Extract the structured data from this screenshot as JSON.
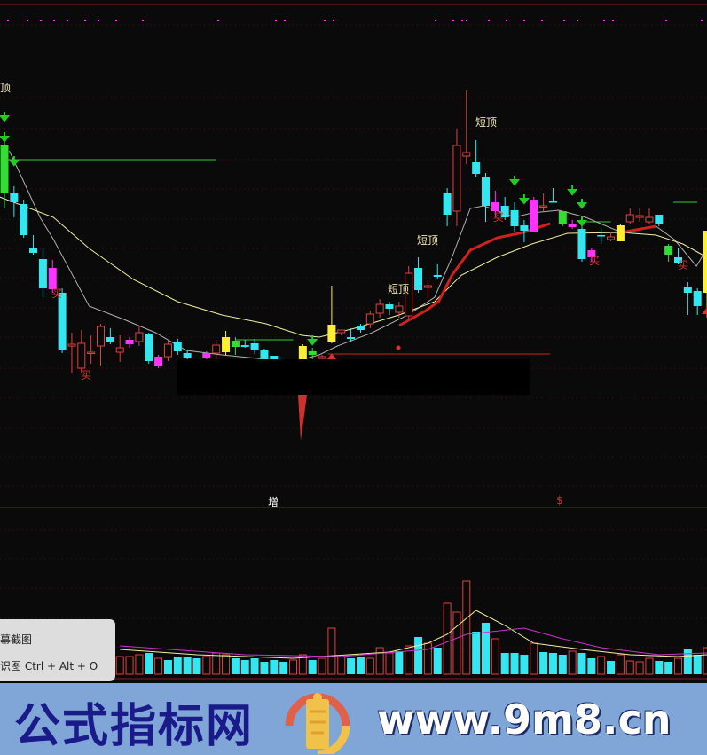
{
  "chart_labels": {
    "top_left_partial": "顶",
    "short_top": [
      "短顶",
      "短顶",
      "短顶"
    ],
    "buy": [
      "买",
      "买",
      "买",
      "买",
      "买"
    ],
    "zeng": "增",
    "dollar": "$"
  },
  "popup": {
    "item1": "幕截图",
    "item2": "识图 Ctrl + Alt + O"
  },
  "banner": {
    "brand": "公式指标网",
    "site": "www.9m8.cn",
    "logo_text": "www.9m8.cn"
  },
  "colors": {
    "background": "#0a0a0a",
    "down_cyan": "#33e6f0",
    "up_red": "#e04040",
    "magenta": "#ff33ff",
    "green": "#33dd33",
    "yellow": "#ffee33",
    "ma_gray": "#b0b0b0",
    "ma_yellow": "#f0f0a0",
    "ma_red": "#d02020",
    "banner": "#7fa6d6",
    "brand_text": "#1a1a8a"
  },
  "chart_data": {
    "type": "candlestick",
    "candle_fields": [
      "index",
      "high",
      "body_top",
      "body_bottom",
      "low",
      "style"
    ],
    "candles": [
      [
        0,
        29.5,
        28.7,
        23.2,
        21.5,
        "green"
      ],
      [
        1,
        24.0,
        23.3,
        22.2,
        20.5,
        "cyan"
      ],
      [
        2,
        22.5,
        22.0,
        18.5,
        18.2,
        "cyan"
      ],
      [
        3,
        18.5,
        17.0,
        16.5,
        16.3,
        "cyan"
      ],
      [
        4,
        17.0,
        15.8,
        12.5,
        11.5,
        "cyan"
      ],
      [
        5,
        15.7,
        14.8,
        12.4,
        12.0,
        "magenta"
      ],
      [
        6,
        12.5,
        12.0,
        5.5,
        5.2,
        "cyan"
      ],
      [
        7,
        7.5,
        6.2,
        6.0,
        3.0,
        "red"
      ],
      [
        8,
        7.8,
        6.3,
        3.5,
        3.0,
        "red"
      ],
      [
        9,
        7.2,
        5.3,
        5.2,
        4.0,
        "red"
      ],
      [
        10,
        8.5,
        8.2,
        6.0,
        3.8,
        "red"
      ],
      [
        11,
        8.0,
        7.0,
        6.5,
        6.2,
        "cyan"
      ],
      [
        12,
        7.2,
        5.8,
        5.3,
        4.2,
        "red"
      ],
      [
        13,
        7.0,
        6.7,
        6.2,
        5.8,
        "magenta"
      ],
      [
        14,
        8.2,
        7.5,
        6.5,
        6.0,
        "red"
      ],
      [
        15,
        7.5,
        7.3,
        4.3,
        4.0,
        "cyan"
      ],
      [
        16,
        5.0,
        4.8,
        3.8,
        3.5,
        "magenta"
      ],
      [
        17,
        6.6,
        6.2,
        4.8,
        4.3,
        "red"
      ],
      [
        18,
        6.8,
        6.5,
        5.4,
        5.0,
        "cyan"
      ],
      [
        19,
        5.5,
        5.2,
        4.6,
        4.4,
        "cyan"
      ],
      [
        21,
        5.4,
        5.2,
        4.6,
        4.4,
        "magenta"
      ],
      [
        22,
        6.7,
        6.1,
        5.2,
        4.5,
        "red"
      ],
      [
        23,
        7.7,
        7.0,
        5.3,
        5.0,
        "yellow"
      ],
      [
        24,
        7.0,
        6.6,
        5.9,
        5.0,
        "green"
      ],
      [
        25,
        6.7,
        6.1,
        5.9,
        5.8,
        "cyan"
      ],
      [
        26,
        6.8,
        6.3,
        5.5,
        5.1,
        "cyan"
      ],
      [
        27,
        5.7,
        5.5,
        4.5,
        4.3,
        "cyan"
      ],
      [
        28,
        4.9,
        4.9,
        4.5,
        4.5,
        "cyan"
      ],
      [
        31,
        6.2,
        6.0,
        4.5,
        4.5,
        "yellow"
      ],
      [
        32,
        5.8,
        5.4,
        5.0,
        4.5,
        "green"
      ],
      [
        33,
        5.0,
        4.8,
        4.6,
        4.4,
        "red"
      ],
      [
        34,
        12.8,
        8.4,
        6.5,
        6.3,
        "yellow"
      ],
      [
        35,
        7.8,
        7.8,
        7.5,
        7.2,
        "red"
      ],
      [
        36,
        8.0,
        7.0,
        6.8,
        6.5,
        "cyan"
      ],
      [
        37,
        8.5,
        8.3,
        7.8,
        7.5,
        "cyan"
      ],
      [
        38,
        10.0,
        9.6,
        8.5,
        8.0,
        "red"
      ],
      [
        39,
        11.3,
        10.7,
        9.7,
        9.2,
        "red"
      ],
      [
        40,
        11.0,
        10.7,
        10.2,
        9.5,
        "cyan"
      ],
      [
        41,
        11.0,
        10.5,
        9.8,
        9.2,
        "red"
      ],
      [
        42,
        15.0,
        14.2,
        9.4,
        9.0,
        "red"
      ],
      [
        43,
        16.0,
        14.8,
        12.3,
        12.0,
        "cyan"
      ],
      [
        44,
        13.4,
        12.8,
        12.6,
        11.4,
        "red"
      ],
      [
        45,
        15.2,
        14.0,
        13.8,
        13.5,
        "cyan"
      ],
      [
        46,
        23.8,
        23.2,
        20.8,
        19.5,
        "cyan"
      ],
      [
        47,
        30.5,
        28.6,
        21.2,
        19.5,
        "red"
      ],
      [
        48,
        34.8,
        27.8,
        27.4,
        26.5,
        "red"
      ],
      [
        49,
        29.2,
        26.7,
        25.4,
        25.0,
        "cyan"
      ],
      [
        50,
        25.5,
        25.0,
        21.8,
        20.0,
        "cyan"
      ],
      [
        51,
        23.5,
        22.2,
        21.2,
        20.5,
        "magenta"
      ],
      [
        52,
        22.8,
        21.8,
        20.5,
        20.2,
        "cyan"
      ],
      [
        53,
        22.2,
        21.3,
        19.5,
        18.8,
        "cyan"
      ],
      [
        54,
        20.2,
        19.6,
        19.0,
        17.7,
        "cyan"
      ],
      [
        55,
        22.8,
        22.5,
        18.8,
        18.8,
        "magenta"
      ],
      [
        56,
        23.2,
        21.8,
        21.8,
        21.2,
        "red"
      ],
      [
        57,
        23.8,
        22.3,
        22.3,
        22.2,
        "cyan"
      ],
      [
        58,
        21.2,
        21.2,
        19.8,
        19.5,
        "green"
      ],
      [
        59,
        20.2,
        19.8,
        19.4,
        19.2,
        "magenta"
      ],
      [
        60,
        20.0,
        19.2,
        15.8,
        15.5,
        "cyan"
      ],
      [
        61,
        17.0,
        16.8,
        16.0,
        15.5,
        "magenta"
      ],
      [
        62,
        19.2,
        18.5,
        18.5,
        17.5,
        "cyan"
      ],
      [
        63,
        18.8,
        18.3,
        18.0,
        17.8,
        "red"
      ],
      [
        64,
        19.8,
        19.6,
        17.8,
        17.8,
        "yellow"
      ],
      [
        65,
        21.5,
        20.8,
        20.0,
        19.8,
        "red"
      ],
      [
        66,
        21.5,
        20.7,
        20.5,
        20.0,
        "red"
      ],
      [
        67,
        21.5,
        20.5,
        20.0,
        19.8,
        "red"
      ],
      [
        68,
        20.8,
        20.8,
        19.8,
        19.5,
        "cyan"
      ],
      [
        69,
        17.5,
        17.3,
        16.3,
        15.5,
        "green"
      ],
      [
        70,
        17.0,
        16.0,
        15.4,
        15.2,
        "cyan"
      ],
      [
        71,
        13.2,
        12.7,
        12.0,
        9.5,
        "cyan"
      ],
      [
        72,
        12.5,
        12.2,
        10.5,
        9.5,
        "cyan"
      ],
      [
        73,
        19.0,
        19.0,
        12.0,
        10.0,
        "yellow"
      ]
    ],
    "ma_lines": [
      {
        "color": "#b0b0b0",
        "points": [
          [
            0.5,
            28
          ],
          [
            1.8,
            25
          ],
          [
            3.7,
            20.5
          ],
          [
            5.1,
            18
          ],
          [
            8.8,
            10.5
          ],
          [
            12.4,
            9
          ],
          [
            15.7,
            7.5
          ],
          [
            18.9,
            5.5
          ],
          [
            22.6,
            5
          ],
          [
            27.2,
            4.5
          ],
          [
            30,
            4.2
          ],
          [
            32.7,
            5
          ],
          [
            34.6,
            6
          ],
          [
            38.2,
            7.5
          ],
          [
            41.9,
            9.5
          ],
          [
            44.7,
            11.5
          ],
          [
            46.5,
            16
          ],
          [
            48.4,
            21.5
          ],
          [
            49.8,
            21.8
          ],
          [
            53,
            20.5
          ],
          [
            54.8,
            21
          ],
          [
            57.6,
            21.3
          ],
          [
            60.4,
            20.5
          ],
          [
            64.1,
            18.8
          ],
          [
            65.9,
            19.2
          ],
          [
            67.7,
            19.5
          ],
          [
            69.6,
            18
          ],
          [
            71.9,
            15
          ],
          [
            73,
            17
          ]
        ]
      },
      {
        "color": "#f0f0a0",
        "points": [
          [
            -0.5,
            22.8
          ],
          [
            5.1,
            20.5
          ],
          [
            8.8,
            17
          ],
          [
            13.4,
            13.5
          ],
          [
            18,
            11
          ],
          [
            22.6,
            9.5
          ],
          [
            27.2,
            8.5
          ],
          [
            30.9,
            7.2
          ],
          [
            32.7,
            7
          ],
          [
            36.4,
            8
          ],
          [
            41,
            9.5
          ],
          [
            44.7,
            11
          ],
          [
            47.5,
            14
          ],
          [
            51.2,
            16
          ],
          [
            54.8,
            17.5
          ],
          [
            58.5,
            18.7
          ],
          [
            64.1,
            18.8
          ],
          [
            67.7,
            18.5
          ],
          [
            70.5,
            17.5
          ],
          [
            73,
            16
          ]
        ]
      },
      {
        "color": "#d02020",
        "thick": true,
        "points": [
          [
            41,
            8.3
          ],
          [
            43.8,
            10
          ],
          [
            45.1,
            11
          ],
          [
            46.5,
            14
          ],
          [
            48.4,
            16.8
          ],
          [
            51.2,
            18.2
          ],
          [
            53.9,
            18.8
          ],
          [
            56.7,
            19.8
          ]
        ]
      },
      {
        "color": "#d02020",
        "thick": true,
        "points": [
          [
            64.1,
            18.8
          ],
          [
            67.7,
            19.5
          ]
        ]
      }
    ],
    "volume": {
      "fields": [
        "index",
        "volume",
        "style"
      ],
      "bars": [
        [
          12,
          20,
          "r"
        ],
        [
          13,
          20,
          "r"
        ],
        [
          14,
          22,
          "r"
        ],
        [
          15,
          24,
          "c"
        ],
        [
          16,
          18,
          "r"
        ],
        [
          17,
          16,
          "c"
        ],
        [
          18,
          20,
          "c"
        ],
        [
          19,
          20,
          "c"
        ],
        [
          20,
          18,
          "c"
        ],
        [
          21,
          20,
          "r"
        ],
        [
          22,
          24,
          "r"
        ],
        [
          23,
          22,
          "r"
        ],
        [
          24,
          18,
          "c"
        ],
        [
          25,
          16,
          "c"
        ],
        [
          26,
          18,
          "c"
        ],
        [
          27,
          14,
          "c"
        ],
        [
          28,
          16,
          "c"
        ],
        [
          29,
          14,
          "c"
        ],
        [
          30,
          16,
          "r"
        ],
        [
          31,
          22,
          "r"
        ],
        [
          32,
          16,
          "c"
        ],
        [
          33,
          18,
          "r"
        ],
        [
          34,
          52,
          "r"
        ],
        [
          35,
          20,
          "r"
        ],
        [
          36,
          18,
          "c"
        ],
        [
          37,
          20,
          "c"
        ],
        [
          38,
          18,
          "r"
        ],
        [
          39,
          30,
          "r"
        ],
        [
          40,
          24,
          "r"
        ],
        [
          41,
          26,
          "c"
        ],
        [
          42,
          32,
          "r"
        ],
        [
          43,
          42,
          "c"
        ],
        [
          44,
          35,
          "r"
        ],
        [
          45,
          30,
          "c"
        ],
        [
          46,
          80,
          "r"
        ],
        [
          47,
          70,
          "r"
        ],
        [
          48,
          105,
          "r"
        ],
        [
          49,
          48,
          "c"
        ],
        [
          50,
          58,
          "c"
        ],
        [
          51,
          40,
          "r"
        ],
        [
          52,
          24,
          "c"
        ],
        [
          53,
          24,
          "c"
        ],
        [
          54,
          22,
          "c"
        ],
        [
          55,
          35,
          "r"
        ],
        [
          56,
          25,
          "c"
        ],
        [
          57,
          24,
          "c"
        ],
        [
          58,
          22,
          "c"
        ],
        [
          59,
          26,
          "r"
        ],
        [
          60,
          24,
          "c"
        ],
        [
          61,
          18,
          "c"
        ],
        [
          62,
          20,
          "r"
        ],
        [
          63,
          15,
          "c"
        ],
        [
          64,
          22,
          "r"
        ],
        [
          65,
          15,
          "r"
        ],
        [
          66,
          14,
          "r"
        ],
        [
          67,
          18,
          "r"
        ],
        [
          68,
          15,
          "c"
        ],
        [
          69,
          14,
          "c"
        ],
        [
          70,
          18,
          "r"
        ],
        [
          71,
          28,
          "c"
        ],
        [
          72,
          22,
          "c"
        ],
        [
          73,
          30,
          "r"
        ]
      ],
      "ma_lines": [
        {
          "color": "#f0f0a0",
          "points": [
            [
              12,
              28
            ],
            [
              20,
              22
            ],
            [
              30,
              18
            ],
            [
              40,
              25
            ],
            [
              44,
              35
            ],
            [
              46,
              45
            ],
            [
              49,
              72
            ],
            [
              52,
              55
            ],
            [
              55,
              35
            ],
            [
              60,
              28
            ],
            [
              65,
              22
            ],
            [
              70,
              20
            ],
            [
              73,
              22
            ]
          ]
        },
        {
          "color": "#cc33cc",
          "points": [
            [
              12,
              32
            ],
            [
              25,
              22
            ],
            [
              35,
              20
            ],
            [
              44,
              28
            ],
            [
              48,
              45
            ],
            [
              54,
              52
            ],
            [
              58,
              40
            ],
            [
              62,
              30
            ],
            [
              68,
              22
            ],
            [
              73,
              24
            ]
          ]
        }
      ]
    },
    "support_lines": [
      {
        "color": "#33cc33",
        "value": 27,
        "from": 0,
        "to": 22
      },
      {
        "color": "#33cc33",
        "value": 6.7,
        "from": 24,
        "to": 30
      },
      {
        "color": "#33cc33",
        "value": 20,
        "from": 60,
        "to": 63
      },
      {
        "color": "#33cc33",
        "value": 22.2,
        "from": 69.5,
        "to": 72
      },
      {
        "color": "#d02020",
        "value": 5.1,
        "from": 33.6,
        "to": 56.7
      }
    ],
    "down_arrows": [
      [
        0,
        31.5
      ],
      [
        0,
        29.2
      ],
      [
        1,
        26.5
      ],
      [
        32,
        6.3
      ],
      [
        53,
        24.3
      ],
      [
        54,
        22.2
      ],
      [
        59,
        23.2
      ],
      [
        60,
        21.7
      ],
      [
        60,
        19.7
      ]
    ],
    "up_arrows": [
      [
        34,
        4.8
      ],
      [
        73,
        10.0
      ]
    ]
  }
}
